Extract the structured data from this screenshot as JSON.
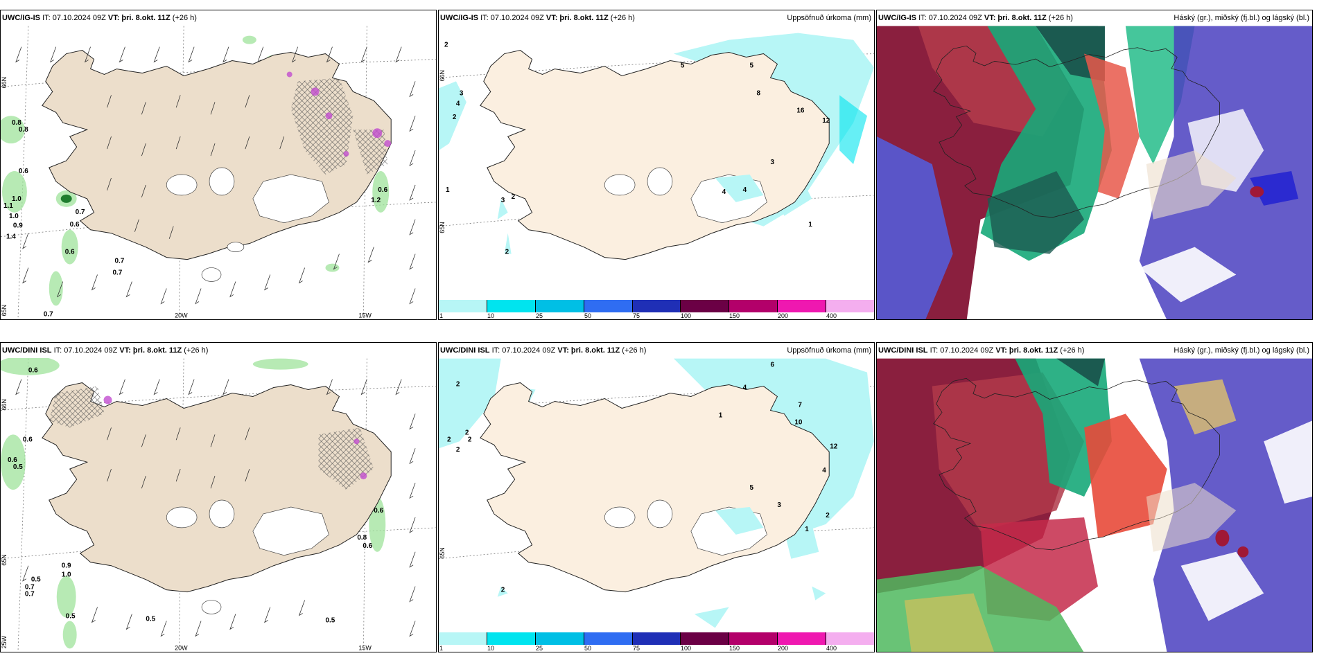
{
  "rows": [
    {
      "model": "UWC/IG-IS",
      "panels": [
        {
          "it_label": "IT: 07.10.2024 09Z",
          "vt_label": "VT:",
          "vt_value": "þri. 8.okt. 11Z",
          "lead": "(+26 h)",
          "right_title": ""
        },
        {
          "it_label": "IT: 07.10.2024 09Z",
          "vt_label": "VT:",
          "vt_value": "þri. 8.okt. 11Z",
          "lead": "(+26 h)",
          "right_title": "Uppsöfnuð úrkoma (mm)"
        },
        {
          "it_label": "IT: 07.10.2024 09Z",
          "vt_label": "VT:",
          "vt_value": "þri. 8.okt. 11Z",
          "lead": "(+26 h)",
          "right_title": "Háský (gr.), miðský (fj.bl.) og lágský (bl.)"
        }
      ],
      "wind_values": [
        "0.8",
        "0.8",
        "0.6",
        "1.0",
        "1.1",
        "1.0",
        "0.9",
        "1.4",
        "0.7",
        "0.6",
        "0.6",
        "0.7",
        "0.7",
        "0.7",
        "0.6",
        "1.2"
      ],
      "precip_values": [
        "2",
        "3",
        "4",
        "2",
        "1",
        "3",
        "2",
        "2",
        "5",
        "5",
        "8",
        "12",
        "16",
        "3",
        "4",
        "4",
        "1"
      ]
    },
    {
      "model": "UWC/DINI ISL",
      "panels": [
        {
          "it_label": "IT: 07.10.2024 09Z",
          "vt_label": "VT:",
          "vt_value": "þri. 8.okt. 11Z",
          "lead": "(+26 h)",
          "right_title": ""
        },
        {
          "it_label": "IT: 07.10.2024 09Z",
          "vt_label": "VT:",
          "vt_value": "þri. 8.okt. 11Z",
          "lead": "(+26 h)",
          "right_title": "Uppsöfnuð úrkoma (mm)"
        },
        {
          "it_label": "IT: 07.10.2024 09Z",
          "vt_label": "VT:",
          "vt_value": "þri. 8.okt. 11Z",
          "lead": "(+26 h)",
          "right_title": "Háský (gr.), miðský (fj.bl.) og lágský (bl.)"
        }
      ],
      "wind_values": [
        "0.6",
        "0.6",
        "0.6",
        "0.5",
        "0.5",
        "0.9",
        "1.0",
        "0.7",
        "0.7",
        "0.5",
        "0.5",
        "0.5",
        "0.6",
        "0.8",
        "0.6"
      ],
      "precip_values": [
        "2",
        "2",
        "2",
        "2",
        "2",
        "1",
        "4",
        "6",
        "7",
        "10",
        "12",
        "4",
        "5",
        "3",
        "2",
        "1",
        "2"
      ]
    }
  ],
  "grid_labels": {
    "lat_65": "65N",
    "lat_66": "66N",
    "lon_25": "25W",
    "lon_20": "20W",
    "lon_15": "15W"
  },
  "colorbar": {
    "colors": [
      "#b7f6f6",
      "#00e4ef",
      "#00bfe5",
      "#2f6df2",
      "#1f2fb6",
      "#6b0045",
      "#b3006a",
      "#ef18b0",
      "#f4aeef"
    ],
    "labels": [
      "1",
      "10",
      "25",
      "50",
      "75",
      "100",
      "150",
      "200",
      "400"
    ]
  }
}
